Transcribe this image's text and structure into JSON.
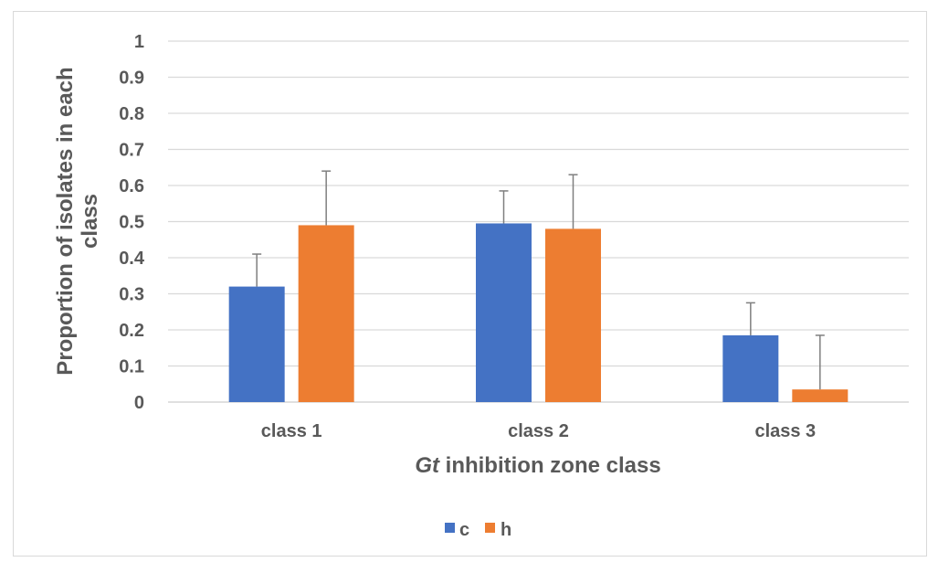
{
  "chart_data": {
    "type": "bar",
    "categories": [
      "class 1",
      "class 2",
      "class 3"
    ],
    "series": [
      {
        "name": "c",
        "color": "#4472C4",
        "values": [
          0.32,
          0.495,
          0.185
        ],
        "error": [
          0.09,
          0.09,
          0.09
        ]
      },
      {
        "name": "h",
        "color": "#ED7D31",
        "values": [
          0.49,
          0.48,
          0.035
        ],
        "error": [
          0.15,
          0.15,
          0.15
        ]
      }
    ],
    "title": "",
    "xlabel": {
      "italic": "Gt",
      "rest": " inhibition zone class"
    },
    "ylabel_lines": [
      "Proportion of isolates in each",
      "class"
    ],
    "ylim": [
      0,
      1
    ],
    "yticks": [
      "0",
      "0.1",
      "0.2",
      "0.3",
      "0.4",
      "0.5",
      "0.6",
      "0.7",
      "0.8",
      "0.9",
      "1"
    ],
    "grid": true,
    "legend_position": "bottom",
    "gridline_color": "#d9d9d9",
    "axis_text_color": "#595959",
    "error_bar_color": "#7f7f7f"
  }
}
